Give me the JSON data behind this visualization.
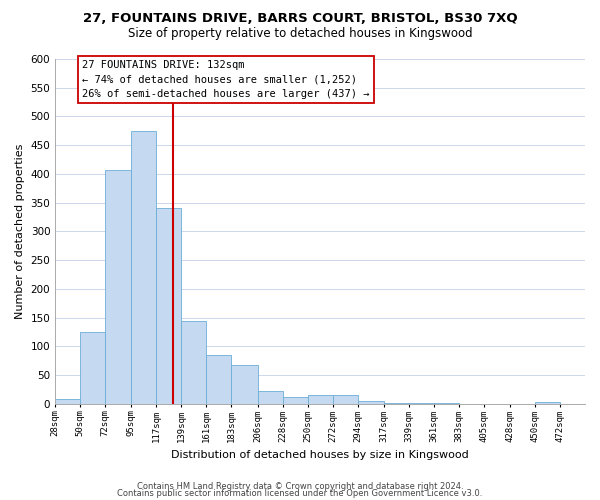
{
  "title_line1": "27, FOUNTAINS DRIVE, BARRS COURT, BRISTOL, BS30 7XQ",
  "title_line2": "Size of property relative to detached houses in Kingswood",
  "xlabel": "Distribution of detached houses by size in Kingswood",
  "ylabel": "Number of detached properties",
  "bar_left_edges": [
    28,
    50,
    72,
    95,
    117,
    139,
    161,
    183,
    206,
    228,
    250,
    272,
    294,
    317,
    339,
    361,
    383,
    405,
    428,
    450
  ],
  "bar_widths": [
    22,
    22,
    23,
    22,
    22,
    22,
    22,
    23,
    22,
    22,
    22,
    22,
    23,
    22,
    22,
    22,
    22,
    23,
    22,
    22
  ],
  "bar_heights": [
    8,
    125,
    407,
    475,
    340,
    145,
    85,
    68,
    22,
    12,
    16,
    16,
    5,
    1,
    2,
    1,
    0,
    0,
    0,
    3
  ],
  "bar_color": "#c5d9f0",
  "bar_edge_color": "#6baed6",
  "ylim": [
    0,
    600
  ],
  "yticks": [
    0,
    50,
    100,
    150,
    200,
    250,
    300,
    350,
    400,
    450,
    500,
    550,
    600
  ],
  "xtick_labels": [
    "28sqm",
    "50sqm",
    "72sqm",
    "95sqm",
    "117sqm",
    "139sqm",
    "161sqm",
    "183sqm",
    "206sqm",
    "228sqm",
    "250sqm",
    "272sqm",
    "294sqm",
    "317sqm",
    "339sqm",
    "361sqm",
    "383sqm",
    "405sqm",
    "428sqm",
    "450sqm",
    "472sqm"
  ],
  "xtick_positions": [
    28,
    50,
    72,
    95,
    117,
    139,
    161,
    183,
    206,
    228,
    250,
    272,
    294,
    317,
    339,
    361,
    383,
    405,
    428,
    450,
    472
  ],
  "property_line_x": 132,
  "property_line_color": "#cc0000",
  "annotation_title": "27 FOUNTAINS DRIVE: 132sqm",
  "annotation_line1": "← 74% of detached houses are smaller (1,252)",
  "annotation_line2": "26% of semi-detached houses are larger (437) →",
  "annotation_box_color": "#ffffff",
  "annotation_box_edge": "#cc0000",
  "footer_line1": "Contains HM Land Registry data © Crown copyright and database right 2024.",
  "footer_line2": "Contains public sector information licensed under the Open Government Licence v3.0.",
  "background_color": "#ffffff",
  "grid_color": "#ccd8ea"
}
